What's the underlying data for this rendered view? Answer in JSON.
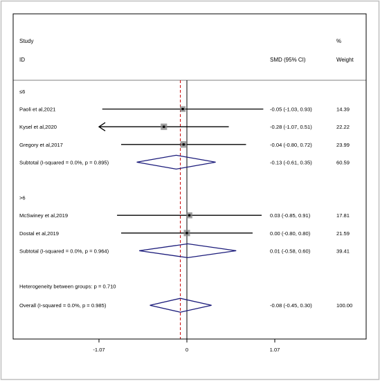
{
  "header": {
    "study_label": "Study",
    "id_label": "ID",
    "effect_label": "SMD (95% CI)",
    "percent_label": "%",
    "weight_label": "Weight"
  },
  "chart_data": {
    "type": "forest",
    "effect_measure": "SMD",
    "xlim": [
      -1.07,
      1.07
    ],
    "xticks": [
      -1.07,
      0,
      1.07
    ],
    "xtick_labels": [
      "-1.07",
      "0",
      "1.07"
    ],
    "null_line": 0,
    "overall_line": -0.08,
    "colors": {
      "ci_line": "#000000",
      "box": "#808080",
      "diamond": "#1a1a7a",
      "overall_line": "#cc0000",
      "frame": "#000000",
      "outer_border": "#bfbfbf"
    },
    "groups": [
      {
        "label": "≤6",
        "studies": [
          {
            "name": "Paoli et al,2021",
            "smd": -0.05,
            "lower": -1.03,
            "upper": 0.93,
            "ci_text": "-0.05 (-1.03, 0.93)",
            "weight": "14.39"
          },
          {
            "name": "Kysel et al,2020",
            "smd": -0.28,
            "lower": -1.07,
            "upper": 0.51,
            "ci_text": "-0.28 (-1.07, 0.51)",
            "weight": "22.22",
            "arrow_left": true
          },
          {
            "name": "Gregory et al,2017",
            "smd": -0.04,
            "lower": -0.8,
            "upper": 0.72,
            "ci_text": "-0.04 (-0.80, 0.72)",
            "weight": "23.99"
          }
        ],
        "subtotal": {
          "label": "Subtotal  (I-squared = 0.0%, p = 0.895)",
          "smd": -0.13,
          "lower": -0.61,
          "upper": 0.35,
          "ci_text": "-0.13 (-0.61, 0.35)",
          "weight": "60.59"
        }
      },
      {
        "label": ">6",
        "studies": [
          {
            "name": "McSwiney et al,2019",
            "smd": 0.03,
            "lower": -0.85,
            "upper": 0.91,
            "ci_text": "0.03 (-0.85, 0.91)",
            "weight": "17.81"
          },
          {
            "name": "Dostal et al,2019",
            "smd": 0.0,
            "lower": -0.8,
            "upper": 0.8,
            "ci_text": "0.00 (-0.80, 0.80)",
            "weight": "21.59"
          }
        ],
        "subtotal": {
          "label": "Subtotal  (I-squared = 0.0%, p = 0.964)",
          "smd": 0.01,
          "lower": -0.58,
          "upper": 0.6,
          "ci_text": "0.01 (-0.58, 0.60)",
          "weight": "39.41"
        }
      }
    ],
    "heterogeneity_label": "Heterogeneity between groups: p = 0.710",
    "overall": {
      "label": "Overall  (I-squared = 0.0%, p = 0.985)",
      "smd": -0.08,
      "lower": -0.45,
      "upper": 0.3,
      "ci_text": "-0.08 (-0.45, 0.30)",
      "weight": "100.00"
    }
  }
}
